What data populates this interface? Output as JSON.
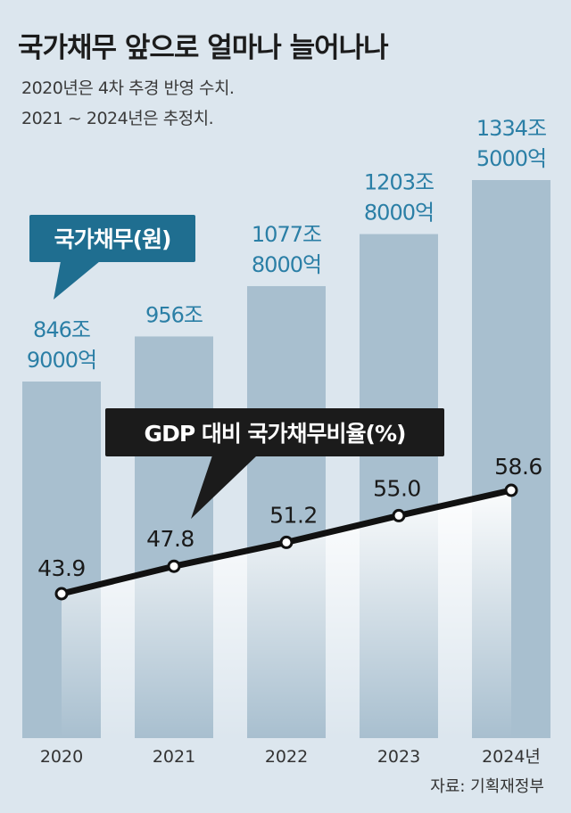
{
  "title": "국가채무 앞으로 얼마나 늘어나나",
  "subtitle_lines": [
    "2020년은 4차 추경 반영 수치.",
    "2021 ~ 2024년은 추정치."
  ],
  "source": "자료: 기획재정부",
  "colors": {
    "background": "#dce6ee",
    "bar": "#a8bfcf",
    "debt_label": "#2b7fa6",
    "debt_callout": "#1f6e90",
    "ratio_callout": "#1b1b1b",
    "line": "#111111"
  },
  "chart_data": {
    "type": "bar+line",
    "categories": [
      "2020",
      "2021",
      "2022",
      "2023",
      "2024년"
    ],
    "series": [
      {
        "name": "국가채무(원)",
        "type": "bar",
        "values_trillion_won": [
          846.9,
          956.0,
          1077.8,
          1203.8,
          1334.5
        ],
        "labels": [
          [
            "846조",
            "9000억"
          ],
          [
            "956조"
          ],
          [
            "1077조",
            "8000억"
          ],
          [
            "1203조",
            "8000억"
          ],
          [
            "1334조",
            "5000억"
          ]
        ]
      },
      {
        "name": "GDP 대비 국가채무비율(%)",
        "type": "line",
        "values": [
          43.9,
          47.8,
          51.2,
          55.0,
          58.6
        ],
        "labels": [
          "43.9",
          "47.8",
          "51.2",
          "55.0",
          "58.6"
        ]
      }
    ]
  }
}
